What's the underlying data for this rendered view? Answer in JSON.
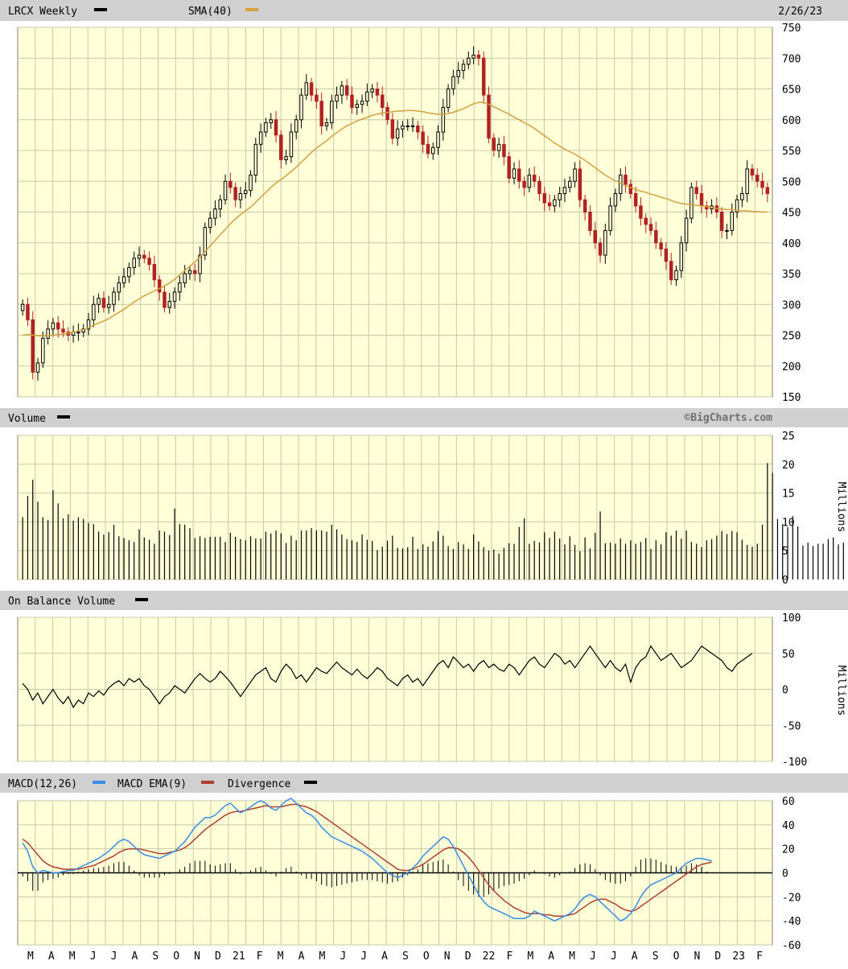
{
  "header": {
    "symbol_label": "LRCX Weekly",
    "sma_label": "SMA(40)",
    "date": "2/26/23"
  },
  "volume_panel": {
    "title": "Volume",
    "watermark": "©BigCharts.com",
    "unit": "Millions"
  },
  "obv_panel": {
    "title": "On Balance Volume",
    "unit": "Millions"
  },
  "macd_panel": {
    "title_macd": "MACD(12,26)",
    "title_ema": "MACD EMA(9)",
    "title_div": "Divergence"
  },
  "colors": {
    "plot_bg": "#ffffd8",
    "grid": "#c8c8a8",
    "header_bg": "#d0d0d0",
    "up_candle": "#000000",
    "down_candle": "#b22222",
    "sma": "#d4a040",
    "macd_line": "#3a8ee6",
    "macd_ema": "#b04030",
    "obv_line": "#000000"
  },
  "x_axis_labels": [
    "M",
    "A",
    "M",
    "J",
    "J",
    "A",
    "S",
    "O",
    "N",
    "D",
    "21",
    "F",
    "M",
    "A",
    "M",
    "J",
    "J",
    "A",
    "S",
    "O",
    "N",
    "D",
    "22",
    "F",
    "M",
    "A",
    "M",
    "J",
    "J",
    "A",
    "S",
    "O",
    "N",
    "D",
    "23",
    "F"
  ],
  "chart_data": [
    {
      "type": "candlestick",
      "title": "LRCX Weekly",
      "ylim": [
        150,
        750
      ],
      "yticks": [
        150,
        200,
        250,
        300,
        350,
        400,
        450,
        500,
        550,
        600,
        650,
        700,
        750
      ],
      "x_start": "2020-03-02",
      "x_end": "2023-02-26",
      "interval": "weekly",
      "close": [
        300,
        275,
        190,
        205,
        245,
        260,
        270,
        260,
        255,
        250,
        255,
        255,
        260,
        275,
        300,
        310,
        295,
        300,
        320,
        335,
        345,
        360,
        375,
        380,
        375,
        365,
        340,
        320,
        295,
        305,
        320,
        335,
        350,
        355,
        350,
        380,
        425,
        440,
        455,
        470,
        500,
        490,
        470,
        480,
        485,
        510,
        560,
        580,
        595,
        600,
        575,
        535,
        540,
        580,
        600,
        640,
        660,
        640,
        630,
        590,
        595,
        630,
        640,
        655,
        640,
        620,
        625,
        630,
        645,
        650,
        640,
        620,
        600,
        570,
        585,
        590,
        590,
        590,
        580,
        560,
        545,
        555,
        580,
        620,
        650,
        670,
        680,
        690,
        700,
        705,
        700,
        640,
        570,
        550,
        560,
        540,
        505,
        520,
        500,
        490,
        510,
        500,
        480,
        465,
        460,
        470,
        480,
        490,
        500,
        520,
        470,
        450,
        420,
        400,
        380,
        420,
        460,
        480,
        510,
        495,
        480,
        460,
        440,
        430,
        420,
        400,
        390,
        370,
        340,
        355,
        400,
        440,
        490,
        480,
        460,
        455,
        460,
        450,
        420,
        420,
        450,
        470,
        480,
        520,
        510,
        500,
        490,
        480
      ],
      "sma": [
        250,
        251,
        250,
        249,
        249,
        249,
        250,
        251,
        252,
        253,
        255,
        257,
        259,
        262,
        266,
        270,
        273,
        277,
        282,
        287,
        292,
        298,
        304,
        309,
        314,
        318,
        322,
        326,
        330,
        335,
        341,
        348,
        355,
        362,
        369,
        377,
        386,
        395,
        404,
        413,
        422,
        431,
        439,
        446,
        452,
        458,
        466,
        474,
        482,
        490,
        497,
        503,
        509,
        516,
        523,
        531,
        539,
        547,
        554,
        560,
        566,
        573,
        579,
        585,
        590,
        594,
        598,
        601,
        604,
        607,
        609,
        611,
        612,
        613,
        614,
        614,
        615,
        615,
        614,
        613,
        611,
        610,
        609,
        609,
        610,
        612,
        615,
        618,
        622,
        626,
        628,
        628,
        625,
        621,
        617,
        613,
        609,
        604,
        600,
        595,
        591,
        586,
        580,
        574,
        568,
        562,
        557,
        552,
        548,
        544,
        539,
        534,
        528,
        522,
        516,
        510,
        505,
        501,
        497,
        493,
        490,
        487,
        484,
        482,
        479,
        477,
        474,
        472,
        469,
        466,
        464,
        463,
        462,
        461,
        460,
        459,
        457,
        456,
        455,
        454,
        454,
        453,
        452,
        452,
        451,
        451,
        450,
        450
      ]
    },
    {
      "type": "bar",
      "title": "Volume",
      "unit": "Millions",
      "ylim": [
        0,
        25
      ],
      "yticks": [
        0,
        5,
        10,
        15,
        20,
        25
      ],
      "values": [
        10.8,
        14.5,
        17.3,
        13.5,
        10.8,
        10.3,
        15.5,
        13.2,
        10.6,
        11.3,
        10.2,
        10.8,
        10.5,
        9.8,
        9.6,
        8.3,
        7.8,
        8.2,
        9.5,
        7.5,
        7.2,
        6.8,
        6.5,
        8.7,
        7.3,
        6.9,
        6.2,
        8.5,
        8.3,
        7.7,
        12.3,
        9.6,
        9.5,
        8.9,
        7.2,
        7.5,
        7.2,
        7.4,
        7.4,
        7.4,
        6.5,
        8.1,
        7.4,
        7.0,
        6.8,
        7.5,
        7.1,
        7.1,
        8.3,
        8.0,
        8.5,
        8.0,
        6.3,
        7.6,
        6.8,
        8.5,
        8.5,
        8.9,
        8.5,
        8.5,
        8.3,
        9.5,
        8.7,
        7.8,
        7.0,
        6.8,
        6.5,
        7.8,
        6.9,
        6.7,
        5.1,
        5.7,
        6.7,
        7.6,
        5.5,
        5.4,
        5.6,
        7.4,
        5.3,
        6.1,
        5.7,
        6.6,
        8.4,
        7.6,
        5.8,
        5.3,
        6.5,
        6.1,
        5.3,
        7.8,
        6.6,
        5.6,
        5.0,
        5.2,
        4.5,
        5.5,
        6.3,
        6.2,
        9.1,
        10.6,
        6.2,
        6.7,
        6.4,
        8.2,
        7.2,
        8.3,
        7.1,
        6.1,
        7.5,
        6.0,
        4.9,
        7.3,
        5.4,
        8.1,
        11.8,
        6.3,
        6.4,
        6.2,
        7.1,
        6.2,
        6.8,
        6.2,
        6.5,
        7.2,
        5.3,
        6.8,
        6.1,
        8.2,
        7.6,
        8.5,
        7.1,
        8.5,
        6.5,
        6.2,
        5.6,
        6.8,
        7.0,
        7.6,
        8.4,
        7.9,
        8.4,
        8.2,
        6.9,
        6.0,
        5.7,
        6.2,
        9.5,
        20.2,
        18.5,
        10.5,
        9.6,
        9.1,
        11.0,
        9.2,
        5.9,
        6.4,
        5.8,
        6.2,
        6.2,
        7.0,
        7.3,
        6.1,
        6.4,
        6.0,
        4.7,
        6.0,
        8.3,
        8.8,
        7.1,
        5.5,
        5.1,
        4.5,
        1.5
      ]
    },
    {
      "type": "line",
      "title": "On Balance Volume",
      "unit": "Millions",
      "ylim": [
        -100,
        100
      ],
      "yticks": [
        -100,
        -50,
        0,
        50,
        100
      ],
      "values": [
        8,
        0,
        -15,
        -5,
        -20,
        -10,
        0,
        -12,
        -20,
        -10,
        -25,
        -15,
        -20,
        -5,
        -10,
        -2,
        -8,
        2,
        8,
        12,
        5,
        15,
        10,
        15,
        5,
        0,
        -10,
        -20,
        -10,
        -5,
        5,
        0,
        -5,
        5,
        15,
        22,
        15,
        10,
        15,
        25,
        18,
        10,
        0,
        -10,
        0,
        10,
        20,
        25,
        30,
        15,
        10,
        25,
        35,
        28,
        15,
        20,
        10,
        20,
        30,
        25,
        22,
        30,
        38,
        30,
        25,
        20,
        28,
        20,
        15,
        22,
        30,
        25,
        15,
        10,
        5,
        15,
        20,
        10,
        15,
        5,
        15,
        25,
        35,
        40,
        30,
        45,
        38,
        30,
        35,
        25,
        35,
        40,
        30,
        35,
        28,
        25,
        35,
        30,
        20,
        30,
        40,
        45,
        35,
        30,
        40,
        50,
        45,
        35,
        40,
        30,
        40,
        50,
        60,
        50,
        40,
        30,
        40,
        30,
        25,
        35,
        10,
        30,
        40,
        45,
        60,
        50,
        40,
        45,
        50,
        40,
        30,
        35,
        40,
        50,
        60,
        55,
        50,
        45,
        40,
        30,
        25,
        35,
        40,
        45,
        50
      ],
      "grid": true
    },
    {
      "type": "line",
      "title": "MACD(12,26)",
      "ylim": [
        -60,
        60
      ],
      "yticks": [
        -60,
        -40,
        -20,
        0,
        20,
        40,
        60
      ],
      "series": [
        {
          "name": "MACD(12,26)",
          "values": [
            25,
            18,
            5,
            0,
            2,
            1,
            0,
            0,
            1,
            2,
            2,
            4,
            6,
            8,
            10,
            12,
            15,
            18,
            22,
            26,
            28,
            26,
            22,
            18,
            15,
            14,
            13,
            12,
            14,
            16,
            18,
            22,
            26,
            32,
            38,
            42,
            46,
            46,
            48,
            52,
            56,
            58,
            54,
            50,
            52,
            55,
            58,
            60,
            58,
            54,
            52,
            56,
            60,
            62,
            58,
            54,
            50,
            48,
            44,
            38,
            34,
            30,
            28,
            26,
            24,
            22,
            20,
            18,
            15,
            12,
            8,
            4,
            0,
            -2,
            -4,
            -2,
            0,
            4,
            8,
            14,
            18,
            22,
            26,
            30,
            28,
            22,
            14,
            6,
            -2,
            -10,
            -18,
            -24,
            -28,
            -30,
            -32,
            -34,
            -36,
            -38,
            -38,
            -38,
            -36,
            -32,
            -34,
            -36,
            -38,
            -40,
            -38,
            -36,
            -34,
            -30,
            -24,
            -20,
            -18,
            -20,
            -24,
            -28,
            -32,
            -36,
            -40,
            -38,
            -34,
            -28,
            -20,
            -14,
            -10,
            -8,
            -6,
            -4,
            -2,
            0,
            4,
            8,
            10,
            12,
            12,
            11,
            10
          ],
          "color": "#3a8ee6"
        },
        {
          "name": "MACD EMA(9)",
          "values": [
            28,
            25,
            20,
            15,
            10,
            7,
            5,
            4,
            3,
            3,
            3,
            3,
            4,
            5,
            6,
            8,
            10,
            12,
            14,
            17,
            19,
            20,
            20,
            20,
            19,
            18,
            17,
            16,
            16,
            17,
            18,
            19,
            21,
            24,
            28,
            32,
            36,
            39,
            42,
            45,
            48,
            50,
            51,
            51,
            52,
            53,
            54,
            55,
            56,
            55,
            55,
            55,
            56,
            57,
            57,
            56,
            55,
            53,
            51,
            48,
            45,
            42,
            39,
            36,
            33,
            30,
            27,
            24,
            21,
            18,
            15,
            12,
            9,
            6,
            3,
            2,
            2,
            3,
            5,
            7,
            10,
            13,
            16,
            19,
            21,
            21,
            20,
            17,
            13,
            8,
            2,
            -4,
            -10,
            -15,
            -19,
            -23,
            -26,
            -29,
            -31,
            -33,
            -34,
            -34,
            -34,
            -35,
            -35,
            -36,
            -36,
            -36,
            -35,
            -34,
            -31,
            -28,
            -25,
            -23,
            -22,
            -22,
            -24,
            -26,
            -29,
            -31,
            -32,
            -31,
            -28,
            -25,
            -22,
            -19,
            -16,
            -13,
            -10,
            -7,
            -4,
            -1,
            2,
            5,
            7,
            8,
            9
          ],
          "color": "#b04030"
        },
        {
          "name": "Divergence",
          "values": [
            -3,
            -7,
            -15,
            -15,
            -8,
            -6,
            -5,
            -4,
            -2,
            -1,
            -1,
            1,
            2,
            3,
            4,
            4,
            5,
            6,
            8,
            9,
            9,
            6,
            2,
            -2,
            -4,
            -4,
            -4,
            -4,
            -2,
            -1,
            0,
            3,
            5,
            8,
            10,
            10,
            10,
            7,
            6,
            7,
            8,
            8,
            3,
            -1,
            0,
            2,
            4,
            5,
            2,
            -1,
            -3,
            1,
            4,
            5,
            1,
            -2,
            -5,
            -5,
            -7,
            -10,
            -11,
            -12,
            -11,
            -10,
            -9,
            -8,
            -7,
            -6,
            -6,
            -6,
            -7,
            -8,
            -9,
            -8,
            -7,
            -4,
            -2,
            1,
            3,
            7,
            8,
            9,
            10,
            11,
            7,
            1,
            -6,
            -11,
            -15,
            -18,
            -20,
            -20,
            -18,
            -15,
            -13,
            -11,
            -10,
            -9,
            -7,
            -5,
            -2,
            2,
            0,
            -1,
            -3,
            -4,
            -2,
            0,
            1,
            4,
            7,
            8,
            7,
            3,
            -2,
            -6,
            -8,
            -9,
            -9,
            -7,
            -3,
            5,
            11,
            12,
            12,
            11,
            9,
            7,
            6,
            5,
            5,
            6,
            8,
            7,
            5,
            1
          ]
        }
      ],
      "grid": true
    }
  ]
}
